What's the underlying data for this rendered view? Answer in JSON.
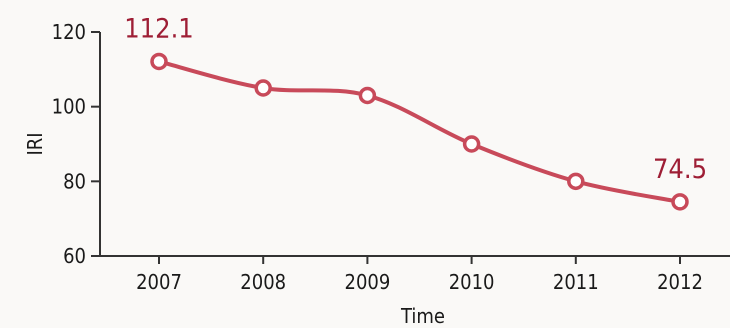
{
  "chart_data": {
    "type": "line",
    "xlabel": "Time",
    "ylabel": "IRI",
    "ylim": [
      60,
      120
    ],
    "yticks": [
      60,
      80,
      100,
      120
    ],
    "grid": false,
    "x": [
      "2007",
      "2008",
      "2009",
      "2010",
      "2011",
      "2012"
    ],
    "series": [
      {
        "values": [
          112.1,
          105,
          103,
          90,
          80,
          74.5
        ],
        "color": "#c84a5a"
      }
    ],
    "data_labels": [
      {
        "index": 0,
        "text": "112.1"
      },
      {
        "index": 5,
        "text": "74.5"
      }
    ],
    "colors": {
      "line": "#c84a5a",
      "label": "#9e1e35",
      "axis": "#333333"
    }
  }
}
